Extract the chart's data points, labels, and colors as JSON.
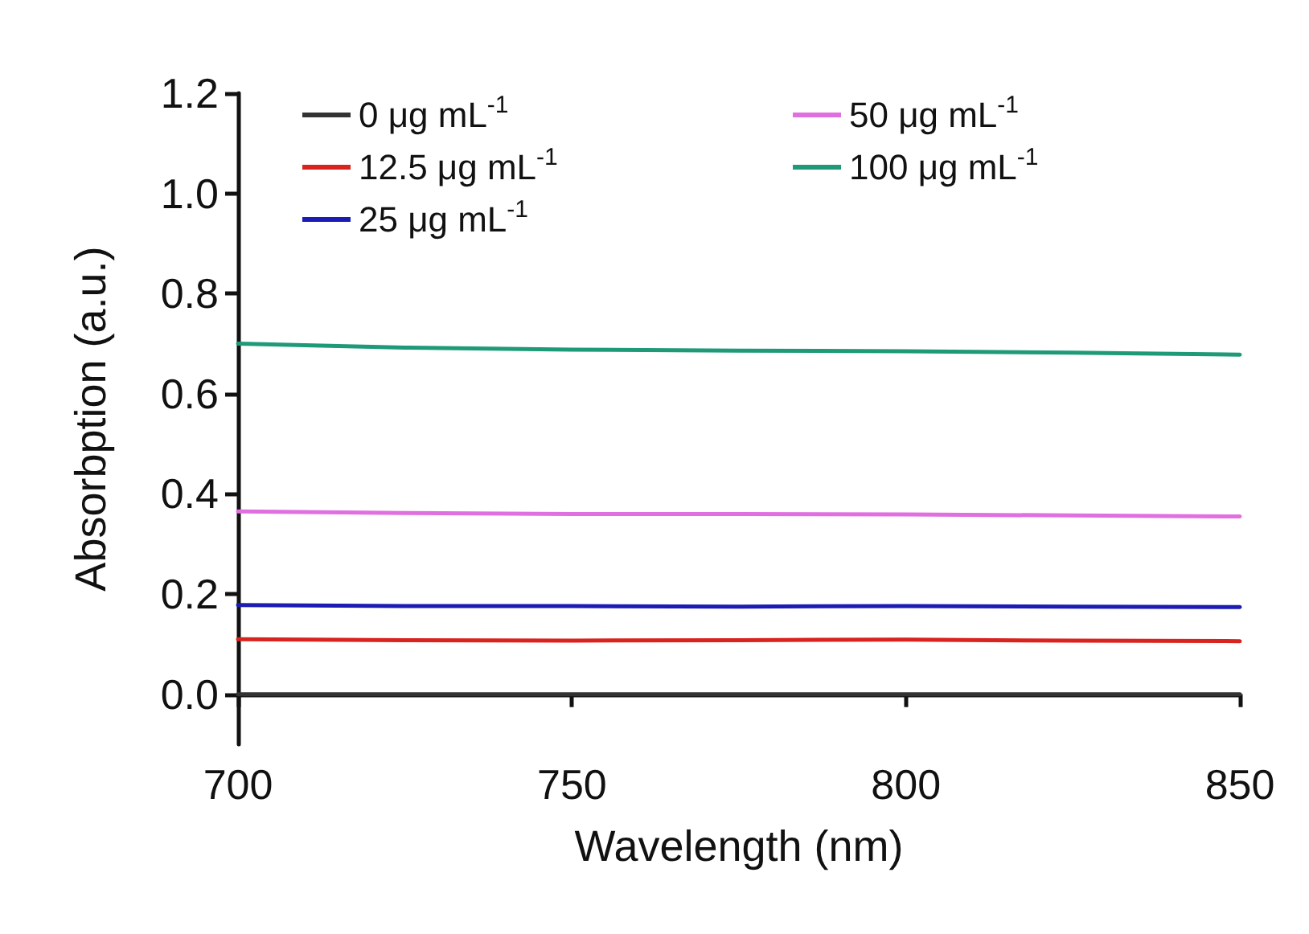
{
  "chart_data": {
    "type": "line",
    "xlabel": "Wavelength (nm)",
    "ylabel": "Absorbption (a.u.)",
    "x": [
      700,
      725,
      750,
      775,
      800,
      825,
      850
    ],
    "series": [
      {
        "name": "0 μg mL$^{-1}$",
        "color": "#333333",
        "values": [
          0.0,
          0.0,
          0.0,
          0.0,
          0.0,
          0.0,
          0.0
        ]
      },
      {
        "name": "12.5 μg mL$^{-1}$",
        "color": "#d8231f",
        "values": [
          0.11,
          0.108,
          0.107,
          0.108,
          0.109,
          0.107,
          0.106
        ]
      },
      {
        "name": "25 μg mL$^{-1}$",
        "color": "#1c1cb4",
        "values": [
          0.178,
          0.176,
          0.176,
          0.175,
          0.176,
          0.175,
          0.174
        ]
      },
      {
        "name": "50 μg mL$^{-1}$",
        "color": "#e070e0",
        "values": [
          0.365,
          0.362,
          0.36,
          0.36,
          0.359,
          0.357,
          0.355
        ]
      },
      {
        "name": "100 μg mL$^{-1}$",
        "color": "#1f9a78",
        "values": [
          0.7,
          0.692,
          0.688,
          0.686,
          0.685,
          0.682,
          0.678
        ]
      }
    ],
    "xlim": [
      700,
      850
    ],
    "xticks": [
      700,
      750,
      800,
      850
    ],
    "ylim": [
      -0.1,
      1.2
    ],
    "yticks": [
      {
        "value": 0,
        "label": "0.0"
      },
      {
        "value": 0.2,
        "label": "0.2"
      },
      {
        "value": 0.4,
        "label": "0.4"
      },
      {
        "value": 0.6,
        "label": "0.6"
      },
      {
        "value": 0.8,
        "label": "0.8"
      },
      {
        "value": 1.0,
        "label": "1.0"
      },
      {
        "value": 1.2,
        "label": "1.2"
      }
    ],
    "grid": false,
    "legend": "top",
    "marker": "none",
    "line_style": "solid"
  }
}
